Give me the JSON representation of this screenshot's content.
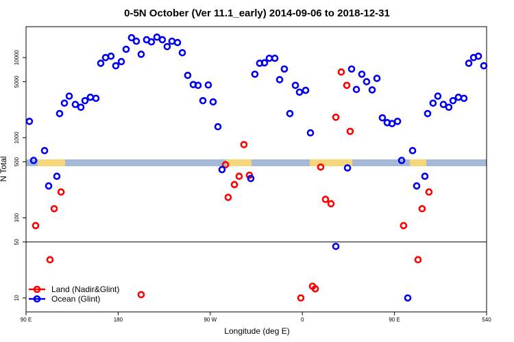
{
  "chart_data": {
    "type": "scatter",
    "title": "0-5N October (Ver 11.1_early)   2014-09-06 to 2018-12-31",
    "x_label": "Longitude (deg E)",
    "y_label": "N Total",
    "log_y": true,
    "legend": "lower left",
    "hline": 50,
    "xlim": [
      90,
      540
    ],
    "ylim": [
      6.7,
      24300
    ],
    "xticks": [
      {
        "value": 90,
        "label": "90 E"
      },
      180,
      {
        "value": 270,
        "label": "90 W"
      },
      {
        "value": 360,
        "label": "0"
      },
      {
        "value": 450,
        "label": "90 E"
      },
      540
    ],
    "yticks": [
      10,
      50,
      100,
      500,
      1000,
      5000,
      10000
    ],
    "series": [
      {
        "name": "Land (Nadir&Glint)",
        "color": "#ff0000",
        "x": [
          99.4,
          113.4,
          117.5,
          124.2,
          202.5,
          284.9,
          287.5,
          293.6,
          298.2,
          302.9,
          308.3,
          358.5,
          369.9,
          372.6,
          377.9,
          382.6,
          388.0,
          392.7,
          398.0,
          403.4,
          406.7,
          458.9,
          473.0,
          477.0,
          483.7
        ],
        "values": [
          80,
          30,
          130,
          210,
          11,
          460,
          180,
          260,
          330,
          820,
          340,
          10,
          14,
          13,
          430,
          170,
          150,
          1800,
          6600,
          4500,
          1200,
          80,
          30,
          130,
          210
        ]
      },
      {
        "name": "Ocean (Glint)",
        "color": "#0000ee",
        "x": [
          93.3,
          97.4,
          108.1,
          112.1,
          120.1,
          122.8,
          127.5,
          132.2,
          138.2,
          143.6,
          147.6,
          152.9,
          158.3,
          163.0,
          167.7,
          173.0,
          177.7,
          183.1,
          187.8,
          193.1,
          197.8,
          202.5,
          207.8,
          212.5,
          217.9,
          223.2,
          227.9,
          232.6,
          238.0,
          242.7,
          248.0,
          253.4,
          258.1,
          262.8,
          268.1,
          272.8,
          277.5,
          281.5,
          309.6,
          313.6,
          318.3,
          323.0,
          327.7,
          333.1,
          337.8,
          342.4,
          347.8,
          353.2,
          357.2,
          363.2,
          367.9,
          392.7,
          404.1,
          408.1,
          412.8,
          418.1,
          422.8,
          428.2,
          432.9,
          438.2,
          442.9,
          447.6,
          453.0,
          457.0,
          463.0,
          467.7,
          471.7,
          479.7,
          482.4,
          487.7,
          492.4,
          497.8,
          503.1,
          507.2,
          512.5,
          517.9,
          522.6,
          527.3,
          532.0,
          537.3
        ],
        "values": [
          1600,
          520,
          690,
          250,
          330,
          2000,
          2700,
          3300,
          2600,
          2400,
          2900,
          3200,
          3100,
          8500,
          10000,
          10400,
          7900,
          8900,
          12700,
          17700,
          16000,
          11000,
          16700,
          15700,
          18000,
          16700,
          13700,
          16000,
          15400,
          11500,
          6000,
          4600,
          4500,
          2900,
          4550,
          2800,
          1370,
          400,
          310,
          6200,
          8500,
          8600,
          9800,
          9800,
          5300,
          7200,
          2000,
          4500,
          3700,
          3900,
          1150,
          44,
          420,
          7200,
          4000,
          6200,
          5000,
          3950,
          5500,
          1770,
          1540,
          1500,
          1600,
          520,
          10,
          690,
          250,
          330,
          2000,
          2700,
          3300,
          2600,
          2400,
          2900,
          3200,
          3100,
          8500,
          10000,
          10400,
          7900
        ]
      }
    ]
  }
}
